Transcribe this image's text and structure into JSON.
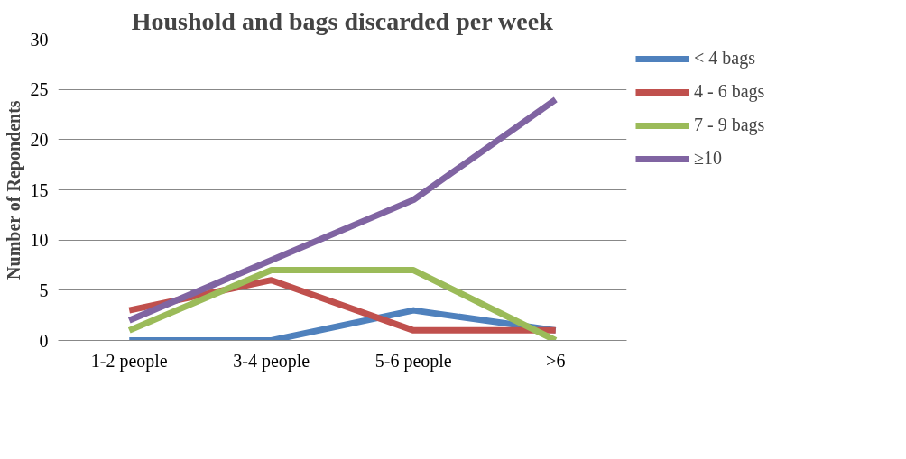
{
  "chart_data": {
    "type": "line",
    "title": "Houshold and bags discarded per week",
    "ylabel": "Number of Repondents",
    "categories": [
      "1-2 people",
      "3-4 people",
      "5-6 people",
      ">6"
    ],
    "series": [
      {
        "name": "< 4 bags",
        "color": "#4f81bd",
        "values": [
          0,
          0,
          3,
          1
        ]
      },
      {
        "name": "4 - 6 bags",
        "color": "#c0504d",
        "values": [
          3,
          6,
          1,
          1
        ]
      },
      {
        "name": "7 - 9 bags",
        "color": "#9bbb59",
        "values": [
          1,
          7,
          7,
          0
        ]
      },
      {
        "name": "≥10",
        "color": "#8064a2",
        "values": [
          2,
          8,
          14,
          24
        ]
      }
    ],
    "ylim": [
      0,
      30
    ],
    "yticks": [
      0,
      5,
      10,
      15,
      20,
      25,
      30
    ],
    "grid": "y",
    "legend": "right",
    "marker": "none",
    "line_style": "solid"
  }
}
